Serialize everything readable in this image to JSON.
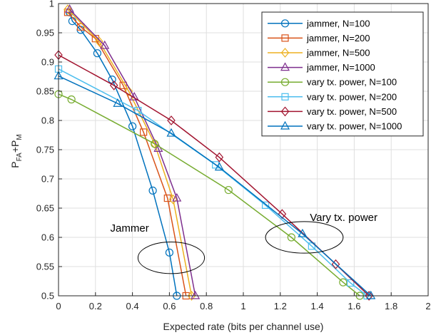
{
  "chart_data": {
    "type": "line",
    "xlabel": "Expected rate (bits per channel use)",
    "ylabel": {
      "base_1": "P",
      "sub_1": "FA",
      "plus": "+",
      "base_2": "P",
      "sub_2": "M"
    },
    "xlim": [
      0,
      2
    ],
    "ylim": [
      0.5,
      1
    ],
    "xticks": [
      0,
      0.2,
      0.4,
      0.6,
      0.8,
      1,
      1.2,
      1.4,
      1.6,
      1.8,
      2
    ],
    "xtick_labels": [
      "0",
      "0.2",
      "0.4",
      "0.6",
      "0.8",
      "1",
      "1.2",
      "1.4",
      "1.6",
      "1.8",
      "2"
    ],
    "yticks": [
      0.5,
      0.55,
      0.6,
      0.65,
      0.7,
      0.75,
      0.8,
      0.85,
      0.9,
      0.95,
      1
    ],
    "ytick_labels": [
      "0.5",
      "0.55",
      "0.6",
      "0.65",
      "0.7",
      "0.75",
      "0.8",
      "0.85",
      "0.9",
      "0.95",
      "1"
    ],
    "grid": true,
    "legend_position": "top-right",
    "series": [
      {
        "name": "jammer, N=100",
        "color": "#0072bd",
        "marker": "circle",
        "x": [
          0.06,
          0.075,
          0.12,
          0.21,
          0.29,
          0.4,
          0.51,
          0.6,
          0.64
        ],
        "y": [
          0.985,
          0.97,
          0.955,
          0.915,
          0.87,
          0.79,
          0.68,
          0.574,
          0.5
        ]
      },
      {
        "name": "jammer, N=200",
        "color": "#d95319",
        "marker": "square",
        "x": [
          0.05,
          0.12,
          0.2,
          0.35,
          0.46,
          0.59,
          0.69
        ],
        "y": [
          0.985,
          0.96,
          0.94,
          0.86,
          0.78,
          0.667,
          0.5
        ]
      },
      {
        "name": "jammer, N=500",
        "color": "#edb120",
        "marker": "diamond",
        "x": [
          0.05,
          0.22,
          0.38,
          0.52,
          0.62,
          0.72
        ],
        "y": [
          0.99,
          0.935,
          0.85,
          0.76,
          0.665,
          0.5
        ]
      },
      {
        "name": "jammer, N=1000",
        "color": "#7e2f8e",
        "marker": "triangle",
        "x": [
          0.06,
          0.25,
          0.41,
          0.54,
          0.64,
          0.74
        ],
        "y": [
          0.99,
          0.928,
          0.84,
          0.752,
          0.667,
          0.5
        ]
      },
      {
        "name": "vary tx. power, N=100",
        "color": "#77ac30",
        "marker": "circle",
        "x": [
          0,
          0.07,
          0.52,
          0.92,
          1.26,
          1.54,
          1.63
        ],
        "y": [
          0.845,
          0.836,
          0.76,
          0.681,
          0.6,
          0.523,
          0.5
        ]
      },
      {
        "name": "vary tx. power, N=200",
        "color": "#4dbeee",
        "marker": "square",
        "x": [
          0,
          0.43,
          0.85,
          1.12,
          1.37,
          1.58,
          1.67
        ],
        "y": [
          0.888,
          0.817,
          0.724,
          0.655,
          0.585,
          0.522,
          0.5
        ]
      },
      {
        "name": "vary tx. power, N=500",
        "color": "#a2142f",
        "marker": "diamond",
        "x": [
          0,
          0.3,
          0.61,
          0.87,
          1.21,
          1.5,
          1.68
        ],
        "y": [
          0.912,
          0.86,
          0.8,
          0.737,
          0.64,
          0.554,
          0.5
        ]
      },
      {
        "name": "vary tx. power, N=1000",
        "color": "#0072bd",
        "marker": "triangle",
        "x": [
          0,
          0.32,
          0.61,
          0.87,
          1.32,
          1.69
        ],
        "y": [
          0.876,
          0.829,
          0.778,
          0.72,
          0.606,
          0.5
        ]
      }
    ],
    "annotations": [
      {
        "text": "Jammer",
        "x": 0.28,
        "y": 0.61,
        "ellipse": {
          "cx": 0.61,
          "cy": 0.565,
          "rx": 0.18,
          "ry": 0.027
        }
      },
      {
        "text": "Vary tx. power",
        "x": 1.36,
        "y": 0.628,
        "ellipse": {
          "cx": 1.33,
          "cy": 0.6,
          "rx": 0.21,
          "ry": 0.027
        }
      }
    ]
  }
}
